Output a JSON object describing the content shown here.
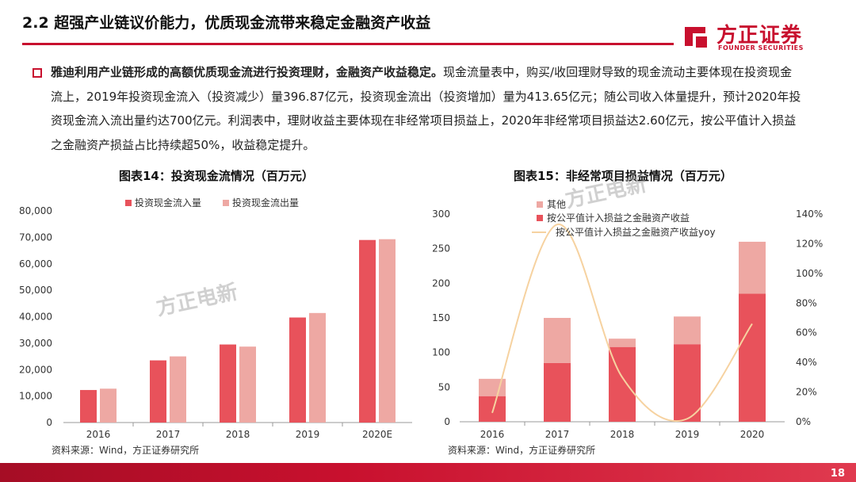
{
  "header": {
    "title": "2.2 超强产业链议价能力，优质现金流带来稳定金融资产收益",
    "logo_text": "方正证券",
    "logo_sub": "FOUNDER SECURITIES"
  },
  "body": {
    "lead_bold": "雅迪利用产业链形成的高额优质现金流进行投资理财，金融资产收益稳定。",
    "text": "现金流量表中，购买/收回理财导致的现金流动主要体现在投资现金流上，2019年投资现金流入（投资减少）量396.87亿元，投资现金流出（投资增加）量为413.65亿元；随公司收入体量提升，预计2020年投资现金流入流出量约达700亿元。利润表中，理财收益主要体现在非经常项目损益上，2020年非经常项目损益达2.60亿元，按公平值计入损益之金融资产损益占比持续超50%，收益稳定提升。"
  },
  "watermark": "方正电新",
  "page_number": "18",
  "colors": {
    "brand": "#c8102e",
    "series_dark": "#e8525b",
    "series_light": "#eea8a3",
    "line": "#f6d2a0"
  },
  "chart_data": [
    {
      "type": "bar",
      "title": "图表14：投资现金流情况（百万元）",
      "categories": [
        "2016",
        "2017",
        "2018",
        "2019",
        "2020E"
      ],
      "series": [
        {
          "name": "投资现金流入量",
          "values": [
            12300,
            23500,
            29500,
            39700,
            69000
          ]
        },
        {
          "name": "投资现金流出量",
          "values": [
            12800,
            25000,
            28700,
            41400,
            69300
          ]
        }
      ],
      "ylim": [
        0,
        80000
      ],
      "yticks": [
        "0",
        "10,000",
        "20,000",
        "30,000",
        "40,000",
        "50,000",
        "60,000",
        "70,000",
        "80,000"
      ],
      "legend": "top",
      "source": "资料来源：Wind，方正证券研究所"
    },
    {
      "type": "bar",
      "title": "图表15：非经常项目损益情况（百万元）",
      "categories": [
        "2016",
        "2017",
        "2018",
        "2019",
        "2020"
      ],
      "series": [
        {
          "name": "其他",
          "values": [
            25,
            65,
            12,
            40,
            75
          ]
        },
        {
          "name": "按公平值计入损益之金融资产收益",
          "values": [
            37,
            85,
            108,
            112,
            185
          ]
        },
        {
          "name": "按公平值计入损益之金融资产收益yoy",
          "axis": "right",
          "type": "line",
          "values": [
            0.06,
            1.33,
            0.3,
            0.02,
            0.66
          ]
        }
      ],
      "stacked": true,
      "ylim": [
        0,
        300
      ],
      "ylim_right": [
        0,
        1.4
      ],
      "yticks": [
        "0",
        "50",
        "100",
        "150",
        "200",
        "250",
        "300"
      ],
      "yticks_right": [
        "0%",
        "20%",
        "40%",
        "60%",
        "80%",
        "100%",
        "120%",
        "140%"
      ],
      "legend": "top-left",
      "source": "资料来源：Wind，方正证券研究所"
    }
  ]
}
